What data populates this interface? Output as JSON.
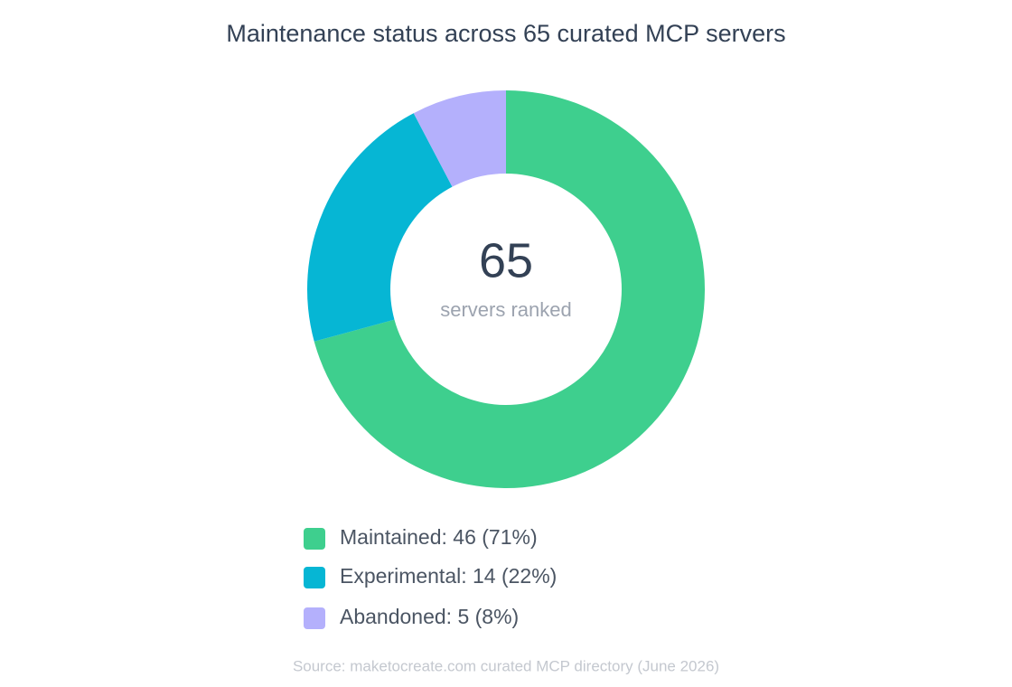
{
  "chart_data": {
    "type": "donut",
    "title": "Maintenance status across 65 curated MCP servers",
    "categories": [
      "Maintained: 46 (71%)",
      "Experimental: 14 (22%)",
      "Abandoned: 5 (8%)"
    ],
    "values": [
      46,
      14,
      5
    ],
    "colors": [
      "#3ecf8e",
      "#06b6d4",
      "#b4b0fc"
    ],
    "center_value": 65,
    "center_label": "servers ranked",
    "source": "Source: maketocreate.com curated MCP directory (June 2026)"
  }
}
